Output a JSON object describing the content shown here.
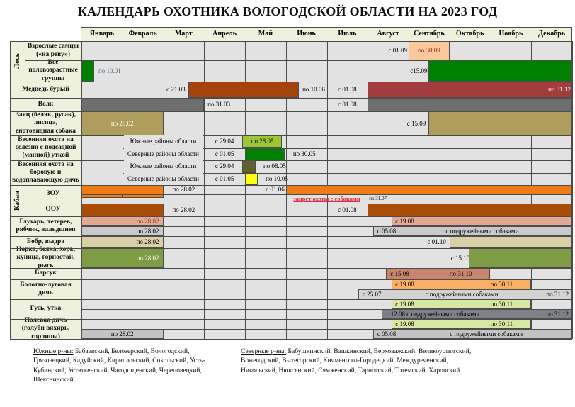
{
  "title": "КАЛЕНДАРЬ ОХОТНИКА ВОЛОГОДСКОЙ ОБЛАСТИ НА 2023 ГОД",
  "footer": {
    "south_label": "Южные р-ны:",
    "south_text": " Бабаевский, Белозерский, Вологодский, Грязовецкий, Кадуйский, Кирилловский, Сокольский, Усть-Кубинский, Устюженский, Чагодощенский, Череповецкий, Шекснинский",
    "north_label": "Северные р-ны:",
    "north_text": " Бабушкинский, Вашкинский, Верховажский, Великоустюгский, Вожегодский, Вытегорский, Кичменгско-Городецкий, Междуреченский, Никольский, Нюксенский, Сямженский, Тарногский, Тотемский, Харовский"
  },
  "calendar": {
    "months": [
      "Январь",
      "Февраль",
      "Март",
      "Апрель",
      "Май",
      "Июнь",
      "Июль",
      "Август",
      "Сентябрь",
      "Октябрь",
      "Ноябрь",
      "Декабрь"
    ],
    "groups": [
      {
        "label": "Лось",
        "from": 0,
        "to": 1
      },
      {
        "label": "Кабан",
        "from": 7,
        "to": 8
      }
    ],
    "rows": [
      {
        "id": "elk-adult-males",
        "label": "Взрослые самцы\n(«на реву»)",
        "h": 27,
        "subs": [
          27
        ],
        "segs": [
          {
            "t": "text",
            "s": 7,
            "e": 8,
            "txt": "с 01.09",
            "a": "r"
          },
          {
            "t": "bar",
            "s": 8,
            "e": 9,
            "c": "#f9c89b"
          },
          {
            "t": "text",
            "s": 8,
            "e": 9,
            "txt": "по 30.09",
            "a": "c",
            "tc": "#99291b"
          }
        ]
      },
      {
        "id": "elk-all-age-groups",
        "label": "Все\nполовозрастные\nгруппы",
        "h": 30,
        "subs": [
          30
        ],
        "segs": [
          {
            "t": "bar",
            "s": 0,
            "e": 0.32,
            "c": "#008000"
          },
          {
            "t": "text",
            "s": 0.38,
            "e": 1.6,
            "txt": "по 10.01",
            "a": "l",
            "tc": "#4e6e86"
          },
          {
            "t": "text",
            "s": 8,
            "e": 8.5,
            "txt": "с15.09",
            "a": "c"
          },
          {
            "t": "bar",
            "s": 8.48,
            "e": 12,
            "c": "#008000"
          }
        ]
      },
      {
        "id": "brown-bear",
        "label": "Медведь бурый",
        "h": 23,
        "subs": [
          23
        ],
        "segs": [
          {
            "t": "text",
            "s": 2,
            "e": 2.62,
            "txt": "с 21.03",
            "a": "c"
          },
          {
            "t": "bar",
            "s": 2.62,
            "e": 5.32,
            "c": "#a6420c"
          },
          {
            "t": "text",
            "s": 5.37,
            "e": 6,
            "txt": "по 10.06",
            "a": "l"
          },
          {
            "t": "text",
            "s": 6,
            "e": 7,
            "txt": "с 01.08",
            "a": "c"
          },
          {
            "t": "bar",
            "s": 7,
            "e": 12,
            "c": "#a33d3d"
          },
          {
            "t": "text",
            "s": 11,
            "e": 12,
            "txt": "по 31.12",
            "a": "r",
            "tc": "#ffffff"
          }
        ]
      },
      {
        "id": "wolf",
        "label": "Волк",
        "h": 19,
        "subs": [
          19
        ],
        "segs": [
          {
            "t": "bar",
            "s": 0,
            "e": 3,
            "c": "#6e6e6e"
          },
          {
            "t": "text",
            "s": 3.05,
            "e": 4,
            "txt": "по 31.03",
            "a": "l"
          },
          {
            "t": "text",
            "s": 6,
            "e": 7,
            "txt": "с 01.08",
            "a": "c"
          },
          {
            "t": "bar",
            "s": 7,
            "e": 12,
            "c": "#6e6e6e"
          }
        ]
      },
      {
        "id": "hare-fox-raccoon-dog",
        "label": "Заяц (беляк, русак),\nлисица,\nенотовидная собака",
        "h": 34,
        "subs": [
          34
        ],
        "segs": [
          {
            "t": "bar",
            "s": 0,
            "e": 2,
            "c": "#ae9d5d"
          },
          {
            "t": "text",
            "s": 0,
            "e": 2,
            "txt": "по 28.02",
            "a": "c",
            "tc": "#ffffff"
          },
          {
            "t": "text",
            "s": 7.9,
            "e": 8.48,
            "txt": "с 15.09",
            "a": "c"
          },
          {
            "t": "bar",
            "s": 8.48,
            "e": 12,
            "c": "#ae9d5d"
          }
        ]
      },
      {
        "id": "spring-drake-decoy-duck-hunt",
        "label": "Весенняя охота на\nселезня с подсадной\n(манной) уткой",
        "h": 35,
        "subs": [
          17.5,
          17.5
        ],
        "divFrom": 1,
        "segs": [
          {
            "t": "text",
            "r": 0,
            "s": 1,
            "e": 3,
            "txt": "Южные районы области",
            "a": "c",
            "n": "region-label",
            "cover": true
          },
          {
            "t": "text",
            "r": 0,
            "s": 3,
            "e": 4,
            "txt": "с 29.04",
            "a": "c"
          },
          {
            "t": "bar",
            "r": 0,
            "s": 3.93,
            "e": 4.9,
            "c": "#9bc832"
          },
          {
            "t": "text",
            "r": 0,
            "s": 3.95,
            "e": 4.9,
            "txt": "по 28.05",
            "a": "c"
          },
          {
            "t": "text",
            "r": 1,
            "s": 1,
            "e": 3,
            "txt": "Северные районы области",
            "a": "c",
            "n": "region-label",
            "cover": true
          },
          {
            "t": "text",
            "r": 1,
            "s": 3,
            "e": 4,
            "txt": "с 01.05",
            "a": "c"
          },
          {
            "t": "bar",
            "r": 1,
            "s": 4,
            "e": 4.97,
            "c": "#008000"
          },
          {
            "t": "text",
            "r": 1,
            "s": 5,
            "e": 5.9,
            "txt": "по 30.05",
            "a": "c"
          }
        ]
      },
      {
        "id": "spring-upland-waterfowl-hunt",
        "label": "Весенняя охота на\nборовую и\nводоплавающую дичь",
        "h": 35,
        "subs": [
          17.5,
          17.5
        ],
        "divFrom": 1,
        "segs": [
          {
            "t": "text",
            "r": 0,
            "s": 1,
            "e": 3,
            "txt": "Южные районы области",
            "a": "c",
            "n": "region-label",
            "cover": true
          },
          {
            "t": "text",
            "r": 0,
            "s": 3,
            "e": 4,
            "txt": "с 29.04",
            "a": "c"
          },
          {
            "t": "bar",
            "r": 0,
            "s": 3.93,
            "e": 4.26,
            "c": "#606031"
          },
          {
            "t": "text",
            "r": 0,
            "s": 4.3,
            "e": 5.15,
            "txt": "по 08.05",
            "a": "c"
          },
          {
            "t": "text",
            "r": 1,
            "s": 1,
            "e": 3,
            "txt": "Северные районы области",
            "a": "c",
            "n": "region-label",
            "cover": true
          },
          {
            "t": "text",
            "r": 1,
            "s": 3,
            "e": 4,
            "txt": "с 01.05",
            "a": "c"
          },
          {
            "t": "bar",
            "r": 1,
            "s": 4,
            "e": 4.32,
            "c": "#ffff00"
          },
          {
            "t": "text",
            "r": 1,
            "s": 4.36,
            "e": 5.2,
            "txt": "по 10.05",
            "a": "c"
          }
        ]
      },
      {
        "id": "boar-zou",
        "label": "ЗОУ",
        "h": 26,
        "subs": [
          13,
          13
        ],
        "segs": [
          {
            "t": "bar",
            "r": 0,
            "s": 0,
            "e": 2,
            "c": "#ef7d17"
          },
          {
            "t": "text",
            "r": 0,
            "s": 2,
            "e": 3,
            "txt": "по 28.02",
            "a": "c"
          },
          {
            "t": "text",
            "r": 0,
            "s": 4,
            "e": 5,
            "txt": "с 01.06",
            "a": "r"
          },
          {
            "t": "bar",
            "r": 0,
            "s": 5,
            "e": 12,
            "c": "#ef7d17"
          },
          {
            "t": "bar",
            "r": 1,
            "s": 0,
            "e": 1,
            "c": "#ef7d17",
            "hf": 0.42
          },
          {
            "t": "bar",
            "r": 1,
            "s": 1,
            "e": 2,
            "c": "#ef7d17",
            "hf": 0.42
          },
          {
            "t": "text",
            "r": 1,
            "s": 5,
            "e": 7,
            "txt": "запрет охоты с собаками",
            "a": "c",
            "tc": "#e12a3c",
            "b": 1,
            "u": 1,
            "fs": 8.5,
            "n": "dog-hunting-ban-note"
          },
          {
            "t": "text",
            "r": 1,
            "s": 7,
            "e": 12,
            "txt": "по 31.07",
            "a": "l",
            "fs": 7
          }
        ]
      },
      {
        "id": "boar-oou",
        "label": "ООУ",
        "h": 18,
        "subs": [
          18
        ],
        "segs": [
          {
            "t": "bar",
            "s": 0,
            "e": 2,
            "c": "#a84e06"
          },
          {
            "t": "text",
            "s": 2,
            "e": 3,
            "txt": "по 28.02",
            "a": "c"
          },
          {
            "t": "text",
            "s": 6,
            "e": 7,
            "txt": "с 01.08",
            "a": "c"
          },
          {
            "t": "bar",
            "s": 7,
            "e": 12,
            "c": "#a84e06"
          }
        ]
      },
      {
        "id": "capercaillie-blackgrouse-hazel-woodcock",
        "label": "Глухарь, тетерев,\nрябчик, вальдшнеп",
        "h": 28,
        "subs": [
          14,
          14
        ],
        "segs": [
          {
            "t": "bar",
            "r": 0,
            "s": 0,
            "e": 2,
            "c": "#e3a896"
          },
          {
            "t": "text",
            "r": 0,
            "s": 0,
            "e": 1.93,
            "txt": "по 28.02",
            "a": "r",
            "tc": "#8c3a22"
          },
          {
            "t": "bar",
            "r": 0,
            "s": 7.58,
            "e": 12,
            "c": "#e3a896"
          },
          {
            "t": "text",
            "r": 0,
            "s": 7.64,
            "e": 9,
            "txt": "с 19.08",
            "a": "l"
          },
          {
            "t": "bar",
            "r": 1,
            "s": 0,
            "e": 2,
            "c": "#c9c9c9"
          },
          {
            "t": "text",
            "r": 1,
            "s": 0,
            "e": 1.93,
            "txt": "по 28.02",
            "a": "r"
          },
          {
            "t": "bar",
            "r": 1,
            "s": 7.13,
            "e": 12,
            "c": "#c9c9c9"
          },
          {
            "t": "text",
            "r": 1,
            "s": 7.2,
            "e": 8.3,
            "txt": "с 05.08",
            "a": "l"
          },
          {
            "t": "text",
            "r": 1,
            "s": 8.3,
            "e": 11.3,
            "txt": "с подружейными собаками",
            "a": "c"
          }
        ]
      },
      {
        "id": "beaver-otter",
        "label": "Бобр, выдра",
        "h": 17,
        "subs": [
          17
        ],
        "segs": [
          {
            "t": "bar",
            "s": 0,
            "e": 2,
            "c": "#d9d0a5"
          },
          {
            "t": "text",
            "s": 0,
            "e": 1.93,
            "txt": "по 28.02",
            "a": "r"
          },
          {
            "t": "text",
            "s": 8,
            "e": 8.95,
            "txt": "с 01.10",
            "a": "r"
          },
          {
            "t": "bar",
            "s": 9,
            "e": 12,
            "c": "#d9d0a5"
          }
        ]
      },
      {
        "id": "mink-squirrel-polecat-marten-ermine-lynx",
        "label": "Норка, белка, хорь,\nкуница, горностай,\nрысь",
        "h": 28,
        "subs": [
          28
        ],
        "segs": [
          {
            "t": "bar",
            "s": 0,
            "e": 2,
            "c": "#7e9c43"
          },
          {
            "t": "text",
            "s": 0,
            "e": 1.93,
            "txt": "по 28.02",
            "a": "r",
            "tc": "#ffffff"
          },
          {
            "t": "text",
            "s": 9,
            "e": 9.48,
            "txt": "с 15.10",
            "a": "c"
          },
          {
            "t": "bar",
            "s": 9.48,
            "e": 12,
            "c": "#7e9c43"
          }
        ]
      },
      {
        "id": "badger",
        "label": "Барсук",
        "h": 16,
        "subs": [
          16
        ],
        "segs": [
          {
            "t": "bar",
            "s": 7.45,
            "e": 10,
            "c": "#c9846e"
          },
          {
            "t": "text",
            "s": 7.52,
            "e": 8.6,
            "txt": "с 15.08",
            "a": "l"
          },
          {
            "t": "text",
            "s": 8.6,
            "e": 9.95,
            "txt": "по 31.10",
            "a": "c"
          }
        ]
      },
      {
        "id": "marsh-meadow-game",
        "label": "Болотно-луговая\nдичь",
        "h": 28,
        "subs": [
          14,
          14
        ],
        "divFrom": 6.77,
        "segs": [
          {
            "t": "bar",
            "r": 0,
            "s": 7.58,
            "e": 11,
            "c": "#f9b066"
          },
          {
            "t": "text",
            "r": 0,
            "s": 7.64,
            "e": 9,
            "txt": "с 19.08",
            "a": "l"
          },
          {
            "t": "text",
            "r": 0,
            "s": 9.6,
            "e": 10.95,
            "txt": "по 30.11",
            "a": "c"
          },
          {
            "t": "bar",
            "r": 1,
            "s": 6.77,
            "e": 12,
            "c": "#d3d3d3"
          },
          {
            "t": "text",
            "r": 1,
            "s": 6.84,
            "e": 8,
            "txt": "с 25.07",
            "a": "l"
          },
          {
            "t": "text",
            "r": 1,
            "s": 8,
            "e": 10.6,
            "txt": "с подружейными собаками",
            "a": "c"
          },
          {
            "t": "text",
            "r": 1,
            "s": 10.6,
            "e": 11.95,
            "txt": "по 31.12",
            "a": "r"
          }
        ]
      },
      {
        "id": "goose-duck",
        "label": "Гусь, утка",
        "h": 28,
        "subs": [
          14,
          14
        ],
        "segs": [
          {
            "t": "bar",
            "r": 0,
            "s": 7.58,
            "e": 11,
            "c": "#d9e7a4"
          },
          {
            "t": "text",
            "r": 0,
            "s": 7.64,
            "e": 9,
            "txt": "с 19.08",
            "a": "l"
          },
          {
            "t": "text",
            "r": 0,
            "s": 9.6,
            "e": 10.95,
            "txt": "по 30.11",
            "a": "c"
          },
          {
            "t": "bar",
            "r": 1,
            "s": 7.35,
            "e": 12,
            "c": "#7d8286"
          },
          {
            "t": "text",
            "r": 1,
            "s": 7.42,
            "e": 10.5,
            "txt": "с 12.08 с подружейными собаками",
            "a": "l"
          },
          {
            "t": "text",
            "r": 1,
            "s": 10.5,
            "e": 11.95,
            "txt": "по 31.12",
            "a": "r"
          }
        ]
      },
      {
        "id": "field-game-pigeons-doves",
        "label": "Полевая дичь\n(голуби вяхирь,\nгорлицы)",
        "h": 28,
        "subs": [
          14,
          14
        ],
        "segs": [
          {
            "t": "bar",
            "r": 0,
            "s": 7.58,
            "e": 11,
            "c": "#d9e7a4"
          },
          {
            "t": "text",
            "r": 0,
            "s": 7.64,
            "e": 9,
            "txt": "с 19.08",
            "a": "l"
          },
          {
            "t": "text",
            "r": 0,
            "s": 9.6,
            "e": 10.95,
            "txt": "по 30.11",
            "a": "c"
          },
          {
            "t": "bar",
            "r": 1,
            "s": 0,
            "e": 2,
            "c": "#c3c3c3"
          },
          {
            "t": "text",
            "r": 1,
            "s": 0,
            "e": 2,
            "txt": "по 28.02",
            "a": "c"
          },
          {
            "t": "bar",
            "r": 1,
            "s": 7.13,
            "e": 12,
            "c": "#c3c3c3"
          },
          {
            "t": "text",
            "r": 1,
            "s": 7.2,
            "e": 8.5,
            "txt": "с 05.08",
            "a": "l"
          },
          {
            "t": "text",
            "r": 1,
            "s": 8.5,
            "e": 11.3,
            "txt": "с подружейными собаками",
            "a": "c"
          }
        ]
      }
    ]
  }
}
